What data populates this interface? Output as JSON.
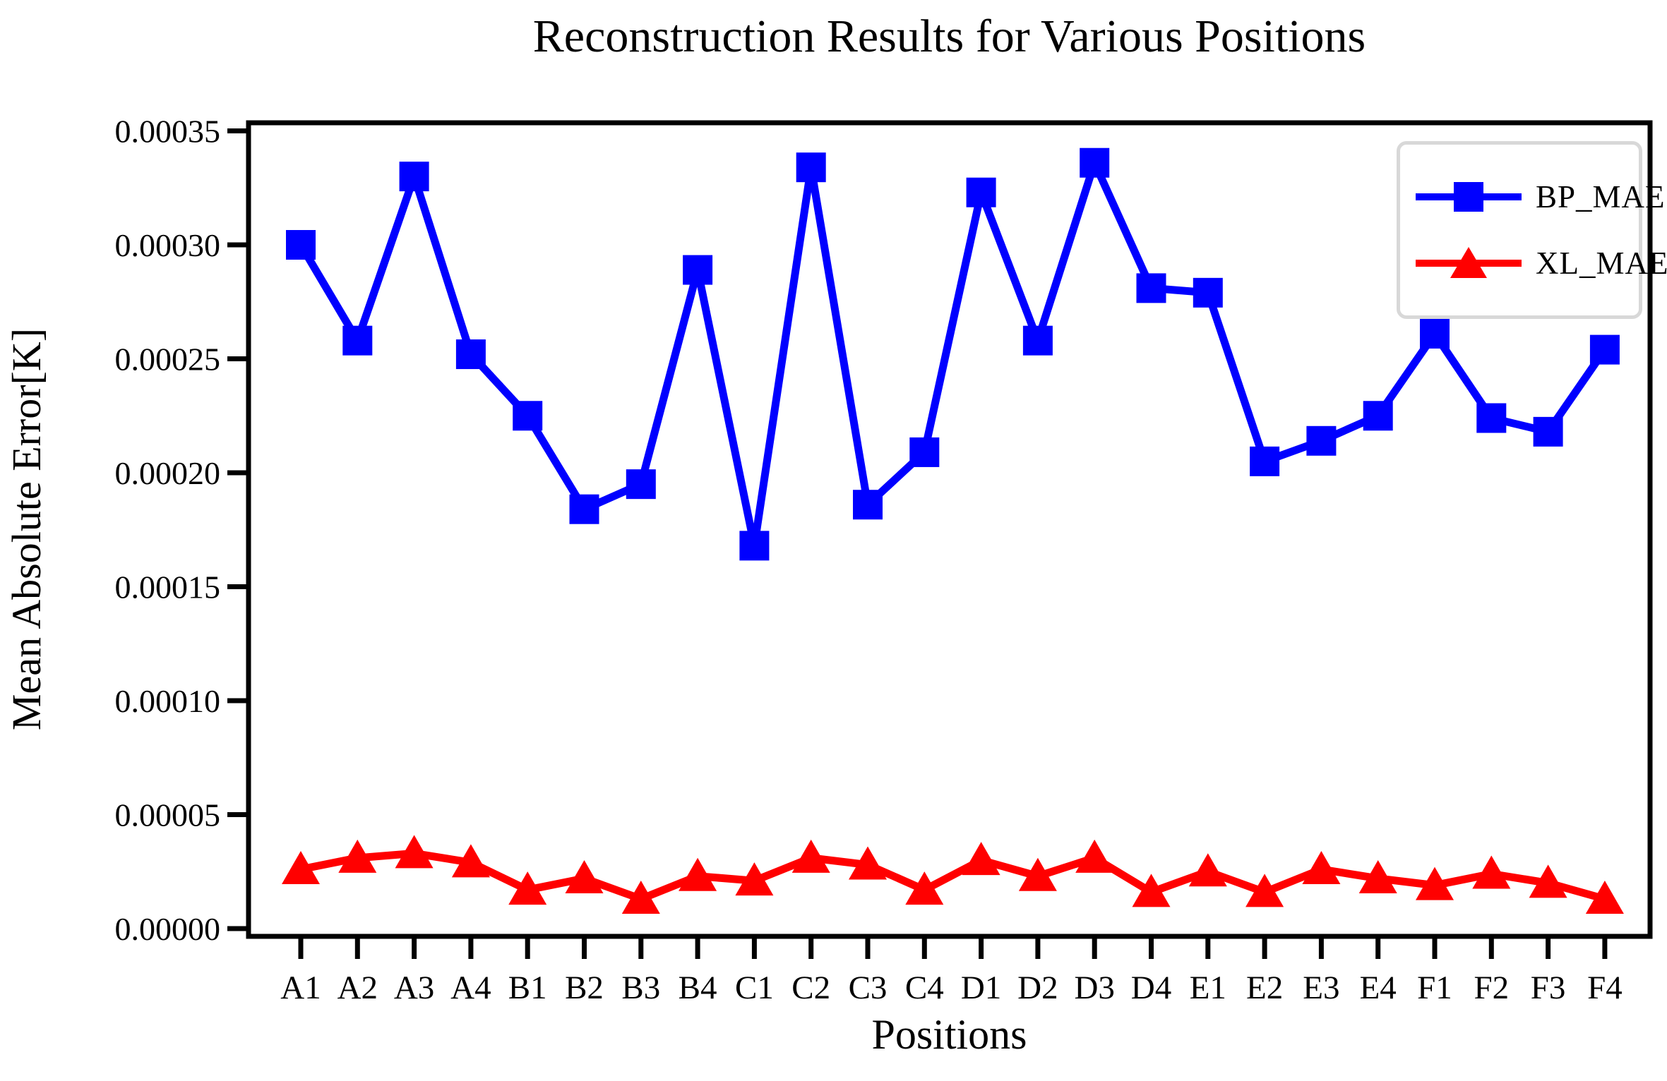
{
  "chart_data": {
    "type": "line",
    "title": "Reconstruction Results for Various Positions",
    "xlabel": "Positions",
    "ylabel": "Mean Absolute Error[K]",
    "categories": [
      "A1",
      "A2",
      "A3",
      "A4",
      "B1",
      "B2",
      "B3",
      "B4",
      "C1",
      "C2",
      "C3",
      "C4",
      "D1",
      "D2",
      "D3",
      "D4",
      "E1",
      "E2",
      "E3",
      "E4",
      "F1",
      "F2",
      "F3",
      "F4"
    ],
    "series": [
      {
        "name": "BP_MAE",
        "color": "#0000ff",
        "marker": "square",
        "values": [
          0.0003,
          0.000258,
          0.00033,
          0.000252,
          0.000225,
          0.000184,
          0.000195,
          0.000289,
          0.000168,
          0.000334,
          0.000186,
          0.000209,
          0.000323,
          0.000258,
          0.000336,
          0.000281,
          0.000279,
          0.000205,
          0.000214,
          0.000225,
          0.000261,
          0.000224,
          0.000218,
          0.000254
        ]
      },
      {
        "name": "XL_MAE",
        "color": "#ff0000",
        "marker": "triangle-up",
        "values": [
          2.6e-05,
          3.1e-05,
          3.3e-05,
          2.9e-05,
          1.7e-05,
          2.2e-05,
          1.3e-05,
          2.3e-05,
          2.1e-05,
          3.1e-05,
          2.8e-05,
          1.7e-05,
          3e-05,
          2.3e-05,
          3.1e-05,
          1.6e-05,
          2.5e-05,
          1.6e-05,
          2.6e-05,
          2.2e-05,
          1.9e-05,
          2.4e-05,
          2e-05,
          1.3e-05
        ]
      }
    ],
    "ylim": [
      0,
      0.00035
    ],
    "y_ticks": [
      0,
      5e-05,
      0.0001,
      0.00015,
      0.0002,
      0.00025,
      0.0003,
      0.00035
    ],
    "y_tick_labels": [
      "0.00000",
      "0.00005",
      "0.00010",
      "0.00015",
      "0.00020",
      "0.00025",
      "0.00030",
      "0.00035"
    ],
    "grid": false,
    "legend_position": "upper right",
    "axis_color": "#000000"
  }
}
